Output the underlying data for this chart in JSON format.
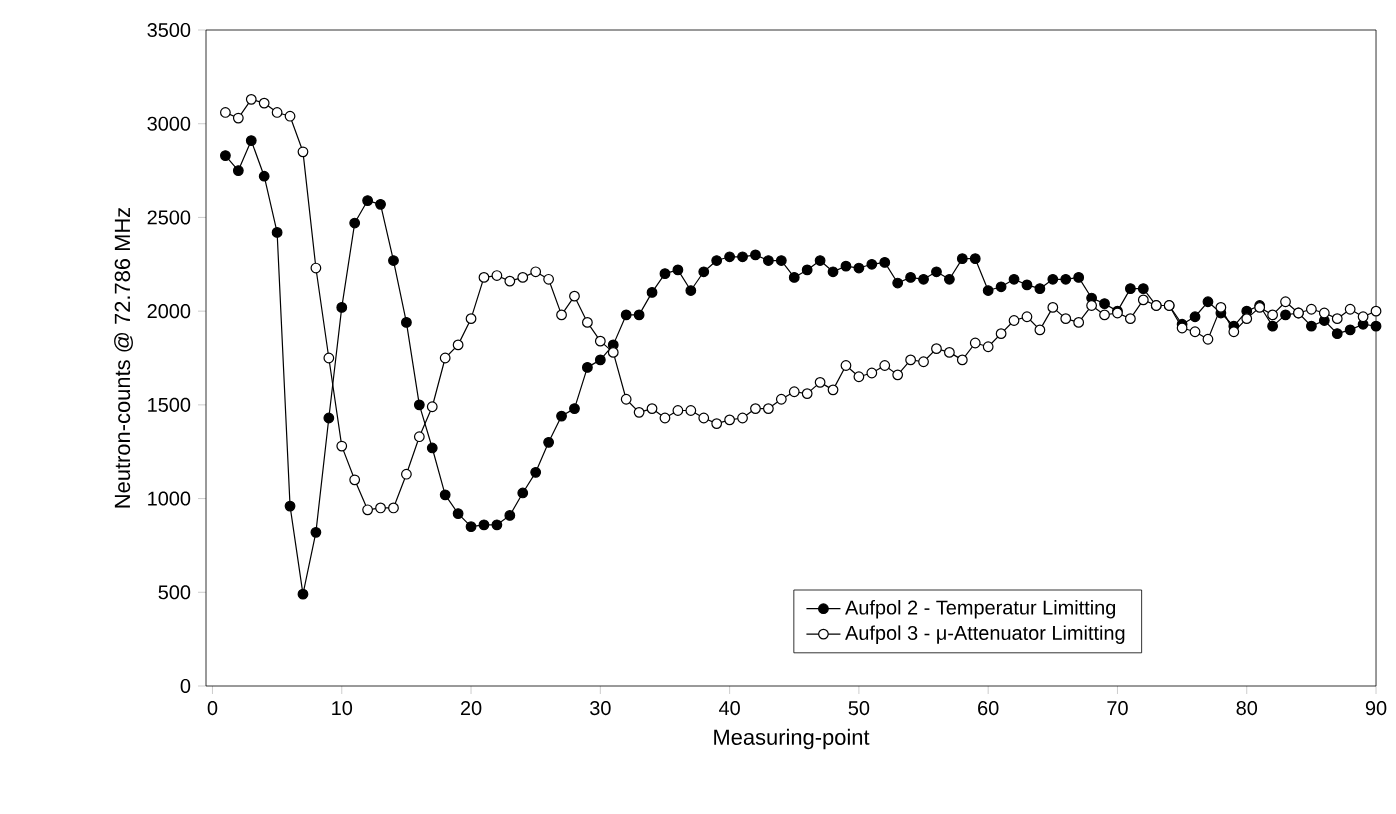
{
  "chart_data": {
    "type": "line",
    "xlabel": "Measuring-point",
    "ylabel": "Neutron-counts @ 72.786 MHz",
    "x": [
      1,
      2,
      3,
      4,
      5,
      6,
      7,
      8,
      9,
      10,
      11,
      12,
      13,
      14,
      15,
      16,
      17,
      18,
      19,
      20,
      21,
      22,
      23,
      24,
      25,
      26,
      27,
      28,
      29,
      30,
      31,
      32,
      33,
      34,
      35,
      36,
      37,
      38,
      39,
      40,
      41,
      42,
      43,
      44,
      45,
      46,
      47,
      48,
      49,
      50,
      51,
      52,
      53,
      54,
      55,
      56,
      57,
      58,
      59,
      60,
      61,
      62,
      63,
      64,
      65,
      66,
      67,
      68,
      69,
      70,
      71,
      72,
      73,
      74,
      75,
      76,
      77,
      78,
      79,
      80,
      81,
      82,
      83,
      84,
      85,
      86,
      87,
      88,
      89,
      90
    ],
    "series": [
      {
        "name": "Aufpol 2 - Temperatur Limitting",
        "color": "#000000",
        "values": [
          2830,
          2750,
          2910,
          2720,
          2420,
          960,
          490,
          820,
          1430,
          2020,
          2470,
          2590,
          2570,
          2270,
          1940,
          1500,
          1270,
          1020,
          920,
          850,
          860,
          860,
          910,
          1030,
          1140,
          1300,
          1440,
          1480,
          1700,
          1740,
          1820,
          1980,
          1980,
          2100,
          2200,
          2220,
          2110,
          2210,
          2270,
          2290,
          2290,
          2300,
          2270,
          2270,
          2180,
          2220,
          2270,
          2210,
          2240,
          2230,
          2250,
          2260,
          2150,
          2180,
          2170,
          2210,
          2170,
          2280,
          2280,
          2110,
          2130,
          2170,
          2140,
          2120,
          2170,
          2170,
          2180,
          2070,
          2040,
          2000,
          2120,
          2120,
          2030,
          2030,
          1930,
          1970,
          2050,
          1990,
          1920,
          2000,
          2030,
          1920,
          1980,
          1990,
          1920,
          1950,
          1880,
          1900,
          1930,
          1920
        ]
      },
      {
        "name": "Aufpol 3 - μ-Attenuator Limitting",
        "color": "#000000",
        "values": [
          3060,
          3030,
          3130,
          3110,
          3060,
          3040,
          2850,
          2230,
          1750,
          1280,
          1100,
          940,
          950,
          950,
          1130,
          1330,
          1490,
          1750,
          1820,
          1960,
          2180,
          2190,
          2160,
          2180,
          2210,
          2170,
          1980,
          2080,
          1940,
          1840,
          1780,
          1530,
          1460,
          1480,
          1430,
          1470,
          1470,
          1430,
          1400,
          1420,
          1430,
          1480,
          1480,
          1530,
          1570,
          1560,
          1620,
          1580,
          1710,
          1650,
          1670,
          1710,
          1660,
          1740,
          1730,
          1800,
          1780,
          1740,
          1830,
          1810,
          1880,
          1950,
          1970,
          1900,
          2020,
          1960,
          1940,
          2030,
          1980,
          1990,
          1960,
          2060,
          2030,
          2030,
          1910,
          1890,
          1850,
          2020,
          1890,
          1960,
          2020,
          1980,
          2050,
          1990,
          2010,
          1990,
          1960,
          2010,
          1970,
          2000
        ]
      }
    ],
    "xlim": [
      -0.5,
      90
    ],
    "ylim": [
      0,
      3500
    ],
    "xticks": [
      0,
      10,
      20,
      30,
      40,
      50,
      60,
      70,
      80,
      90
    ],
    "yticks": [
      0,
      500,
      1000,
      1500,
      2000,
      2500,
      3000,
      3500
    ],
    "marker": "circle",
    "line_style": "solid",
    "grid": false,
    "legend": "bottom right"
  }
}
